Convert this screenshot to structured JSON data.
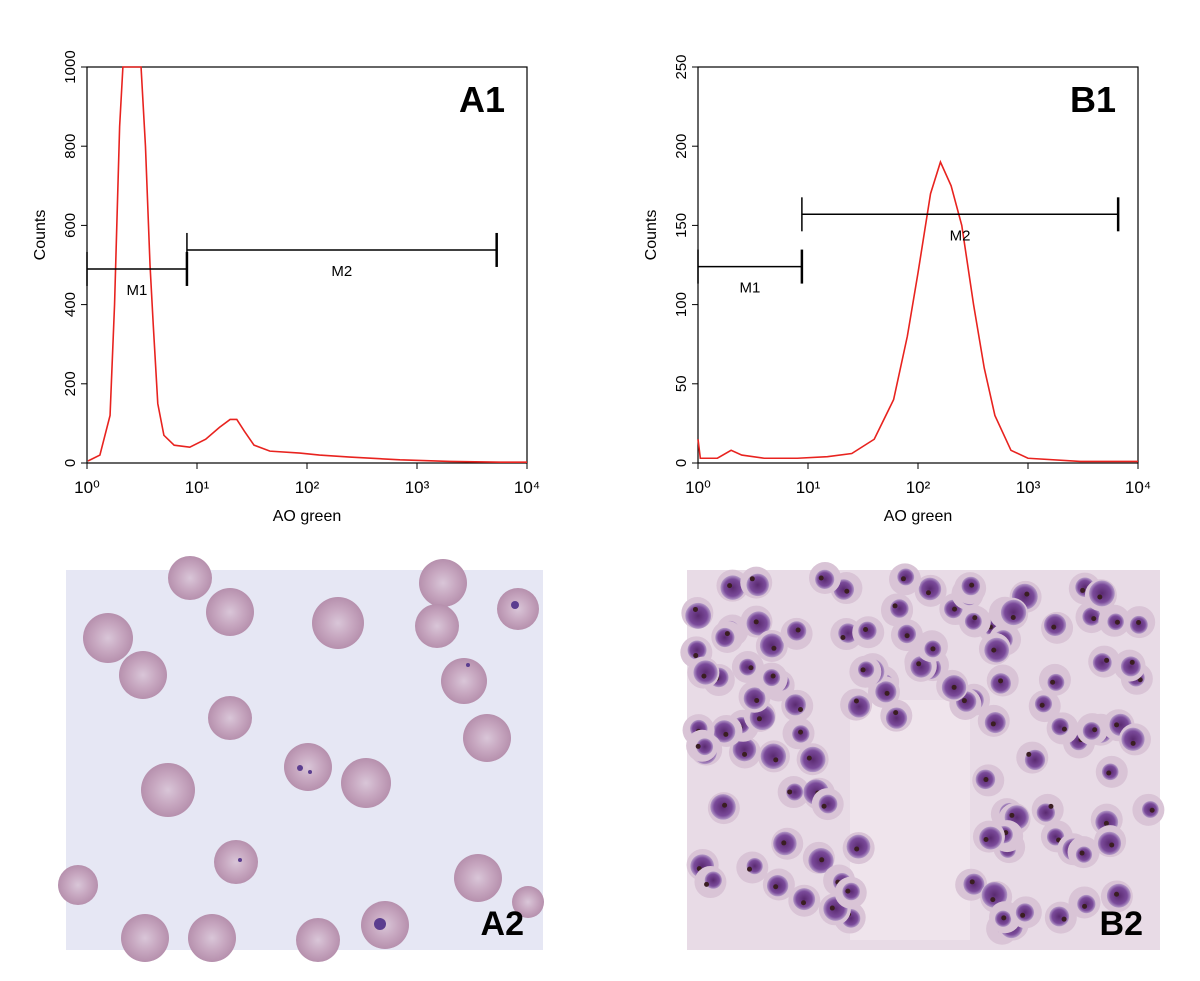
{
  "chart_data": [
    {
      "type": "line",
      "title": "A1",
      "xlabel": "AO green",
      "ylabel": "Counts",
      "xscale": "log",
      "color": "#e8231f",
      "x": [
        1.02,
        1.31,
        1.62,
        1.78,
        1.98,
        2.12,
        3.1,
        3.4,
        3.74,
        4.0,
        4.4,
        5.0,
        6.2,
        8.6,
        12,
        16,
        20,
        23,
        27,
        33,
        46,
        86,
        130,
        245,
        700,
        2000,
        5700,
        10000
      ],
      "values": [
        5,
        20,
        120,
        400,
        850,
        1000,
        1000,
        800,
        500,
        350,
        150,
        70,
        45,
        40,
        60,
        90,
        110,
        110,
        80,
        45,
        30,
        25,
        20,
        15,
        8,
        4,
        2,
        2
      ],
      "xlim": [
        1,
        10000
      ],
      "ylim": [
        0,
        1000
      ],
      "xticks": [
        {
          "value": 1,
          "label": "10⁰"
        },
        {
          "value": 10,
          "label": "10¹"
        },
        {
          "value": 100,
          "label": "10²"
        },
        {
          "value": 1000,
          "label": "10³"
        },
        {
          "value": 10000,
          "label": "10⁴"
        }
      ],
      "yticks": [
        0,
        200,
        400,
        600,
        800,
        1000
      ],
      "markers": [
        {
          "label": "M1",
          "x": [
            1,
            8.1
          ],
          "y": 490
        },
        {
          "label": "M2",
          "x": [
            8.1,
            5300
          ],
          "y": 538
        }
      ]
    },
    {
      "type": "line",
      "title": "B1",
      "xlabel": "AO green",
      "ylabel": "Counts",
      "xscale": "log",
      "color": "#e8231f",
      "x": [
        1,
        1.05,
        1.5,
        2.0,
        2.5,
        4,
        8,
        15,
        25,
        40,
        60,
        80,
        100,
        130,
        160,
        200,
        250,
        320,
        400,
        500,
        700,
        1000,
        3000,
        10000
      ],
      "values": [
        15,
        3,
        3,
        8,
        5,
        3,
        3,
        4,
        6,
        15,
        40,
        80,
        120,
        170,
        190,
        175,
        150,
        100,
        60,
        30,
        8,
        3,
        1,
        1
      ],
      "xlim": [
        1,
        10000
      ],
      "ylim": [
        0,
        250
      ],
      "xticks": [
        {
          "value": 1,
          "label": "10⁰"
        },
        {
          "value": 10,
          "label": "10¹"
        },
        {
          "value": 100,
          "label": "10²"
        },
        {
          "value": 1000,
          "label": "10³"
        },
        {
          "value": 10000,
          "label": "10⁴"
        }
      ],
      "yticks": [
        0,
        50,
        100,
        150,
        200,
        250
      ],
      "markers": [
        {
          "label": "M1",
          "x": [
            1,
            8.8
          ],
          "y": 124
        },
        {
          "label": "M2",
          "x": [
            8.8,
            6600
          ],
          "y": 157
        }
      ]
    }
  ],
  "images": [
    {
      "label": "A2"
    },
    {
      "label": "B2"
    }
  ]
}
